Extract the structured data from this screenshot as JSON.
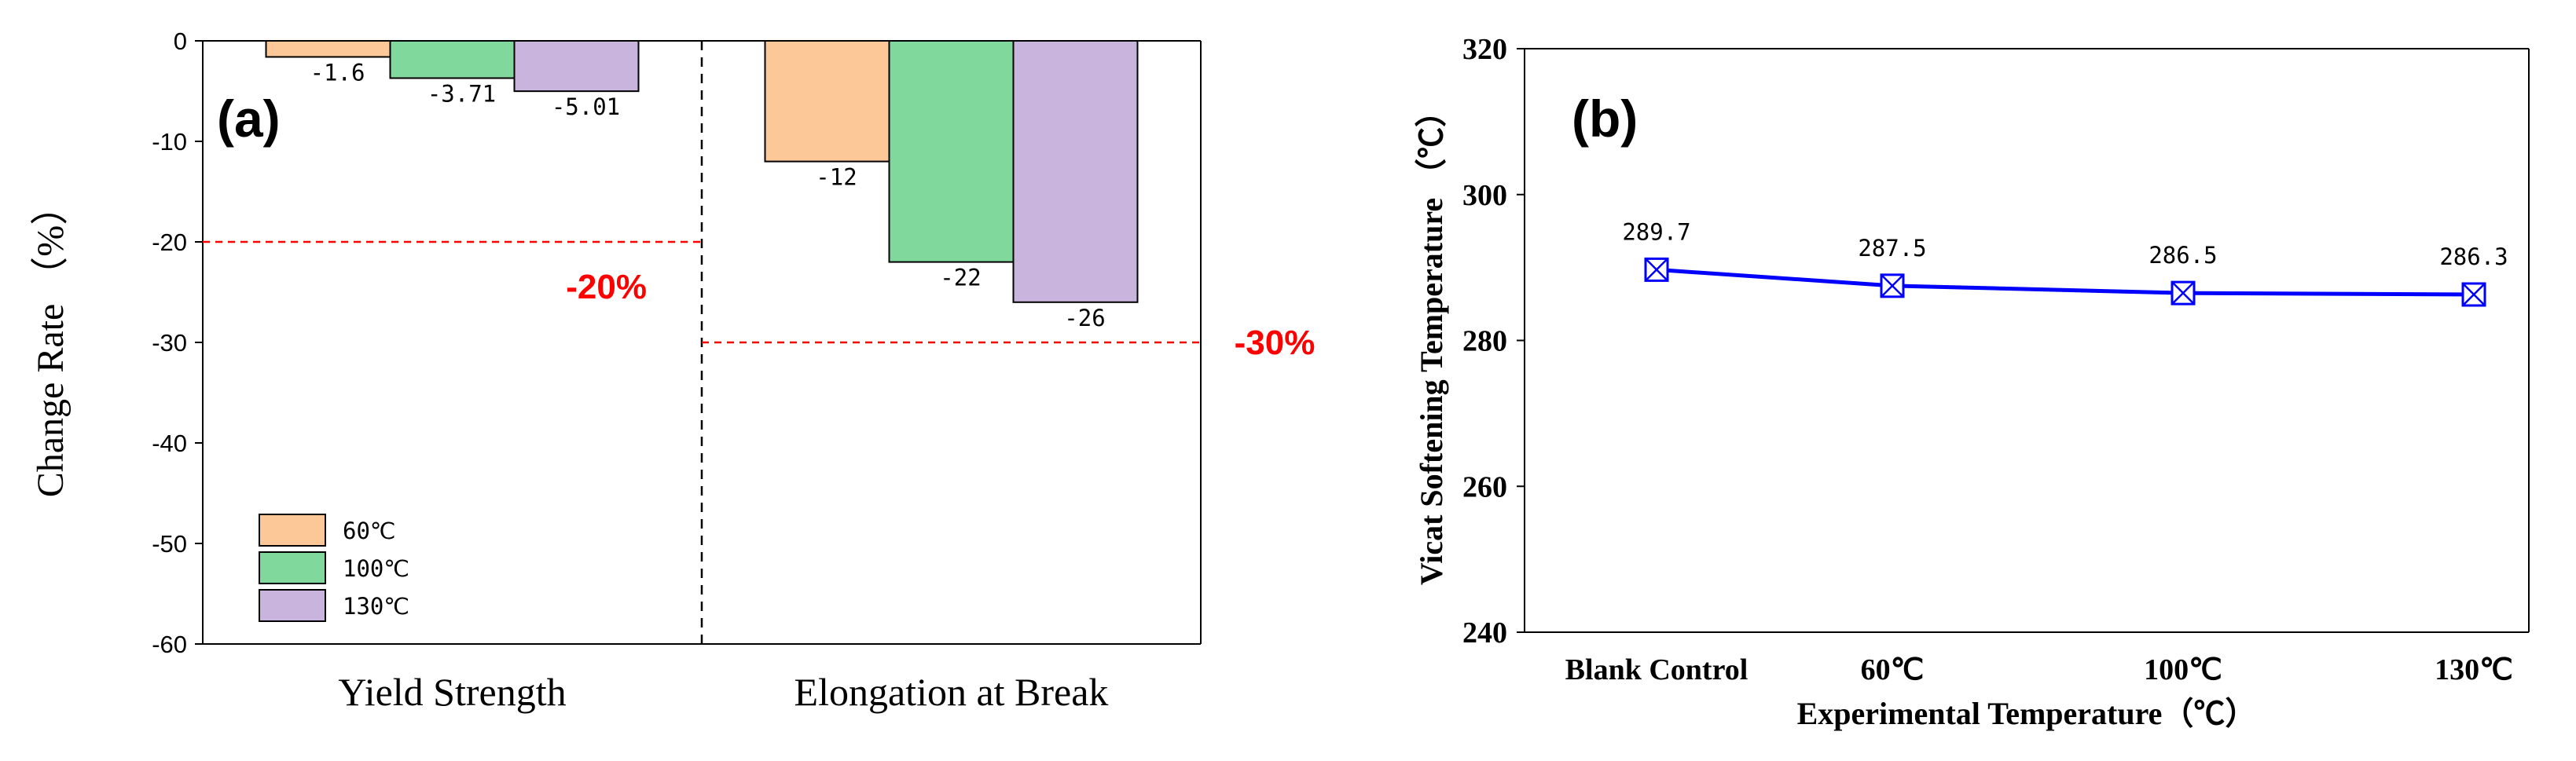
{
  "chart_data": [
    {
      "type": "bar",
      "panel_label": "(a)",
      "categories": [
        "Yield Strength",
        "Elongation at Break"
      ],
      "series": [
        {
          "name": "60℃",
          "values": [
            -1.6,
            -12
          ],
          "labels": [
            "-1.6",
            "-12"
          ],
          "color": "#fcc898"
        },
        {
          "name": "100℃",
          "values": [
            -3.71,
            -22
          ],
          "labels": [
            "-3.71",
            "-22"
          ],
          "color": "#80d89c"
        },
        {
          "name": "130℃",
          "values": [
            -5.01,
            -26
          ],
          "labels": [
            "-5.01",
            "-26"
          ],
          "color": "#c8b4dc"
        }
      ],
      "ylabel": "Change Rate （%）",
      "ylim": [
        -60,
        0
      ],
      "yticks": [
        0,
        -10,
        -20,
        -30,
        -40,
        -50,
        -60
      ],
      "thresholds": [
        {
          "value": -20,
          "label": "-20%",
          "category_index": 0
        },
        {
          "value": -30,
          "label": "-30%",
          "category_index": 1
        }
      ],
      "threshold_color": "#ff0000",
      "legend_position": "bottom-left",
      "grid": false
    },
    {
      "type": "line",
      "panel_label": "(b)",
      "categories": [
        "Blank Control",
        "60℃",
        "100℃",
        "130℃"
      ],
      "values": [
        289.7,
        287.5,
        286.5,
        286.3
      ],
      "labels": [
        "289.7",
        "287.5",
        "286.5",
        "286.3"
      ],
      "ylabel": "Vicat Softening Temperature （℃）",
      "xlabel": "Experimental Temperature（℃）",
      "ylim": [
        240,
        320
      ],
      "yticks": [
        240,
        260,
        280,
        300,
        320
      ],
      "line_color": "#0000ff",
      "marker": "boxed-x",
      "grid": false
    }
  ]
}
